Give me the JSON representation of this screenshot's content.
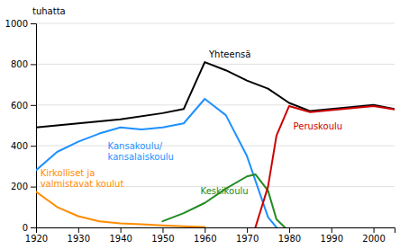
{
  "chart_data": {
    "type": "line",
    "ylabel": "tuhatta",
    "xlim": [
      1920,
      2005
    ],
    "ylim": [
      0,
      1000
    ],
    "xticks": [
      1920,
      1930,
      1940,
      1950,
      1960,
      1970,
      1980,
      1990,
      2000
    ],
    "yticks": [
      0,
      200,
      400,
      600,
      800,
      1000
    ],
    "grid": true,
    "series": [
      {
        "color": "#000000",
        "x": [
          1920,
          1930,
          1940,
          1950,
          1955,
          1960,
          1965,
          1970,
          1975,
          1980,
          1985,
          1990,
          1995,
          2000,
          2005
        ],
        "values": [
          490,
          510,
          530,
          560,
          580,
          810,
          770,
          720,
          680,
          610,
          570,
          580,
          590,
          600,
          580
        ]
      },
      {
        "color": "#1e90ff",
        "x": [
          1920,
          1925,
          1930,
          1935,
          1940,
          1945,
          1950,
          1955,
          1960,
          1965,
          1970,
          1975,
          1977
        ],
        "values": [
          280,
          370,
          420,
          460,
          490,
          480,
          490,
          510,
          630,
          550,
          350,
          50,
          0
        ]
      },
      {
        "color": "#228b22",
        "x": [
          1950,
          1955,
          1960,
          1965,
          1970,
          1972,
          1975,
          1977,
          1979
        ],
        "values": [
          30,
          70,
          120,
          190,
          250,
          260,
          180,
          40,
          0
        ]
      },
      {
        "color": "#cc0000",
        "x": [
          1972,
          1975,
          1977,
          1980,
          1985,
          1990,
          1995,
          2000,
          2005
        ],
        "values": [
          0,
          200,
          450,
          595,
          565,
          575,
          585,
          595,
          578
        ]
      },
      {
        "color": "#ff8c00",
        "x": [
          1920,
          1925,
          1930,
          1935,
          1940,
          1945,
          1950,
          1955,
          1960
        ],
        "values": [
          175,
          100,
          55,
          30,
          20,
          15,
          10,
          5,
          2
        ]
      }
    ],
    "annotations": [
      {
        "text": "Yhteensä",
        "x": 1961,
        "y": 825,
        "color": "#000000"
      },
      {
        "text": "Kansakoulu/\nkansalaiskoulu",
        "x": 1937,
        "y": 430,
        "color": "#1e90ff"
      },
      {
        "text": "Keskikoulu",
        "x": 1959,
        "y": 155,
        "color": "#228b22"
      },
      {
        "text": "Peruskoulu",
        "x": 1981,
        "y": 530,
        "color": "#cc0000"
      },
      {
        "text": "Kirkolliset ja\nvalmistavat koulut",
        "x": 1921,
        "y": 190,
        "color": "#ff8c00"
      }
    ]
  }
}
